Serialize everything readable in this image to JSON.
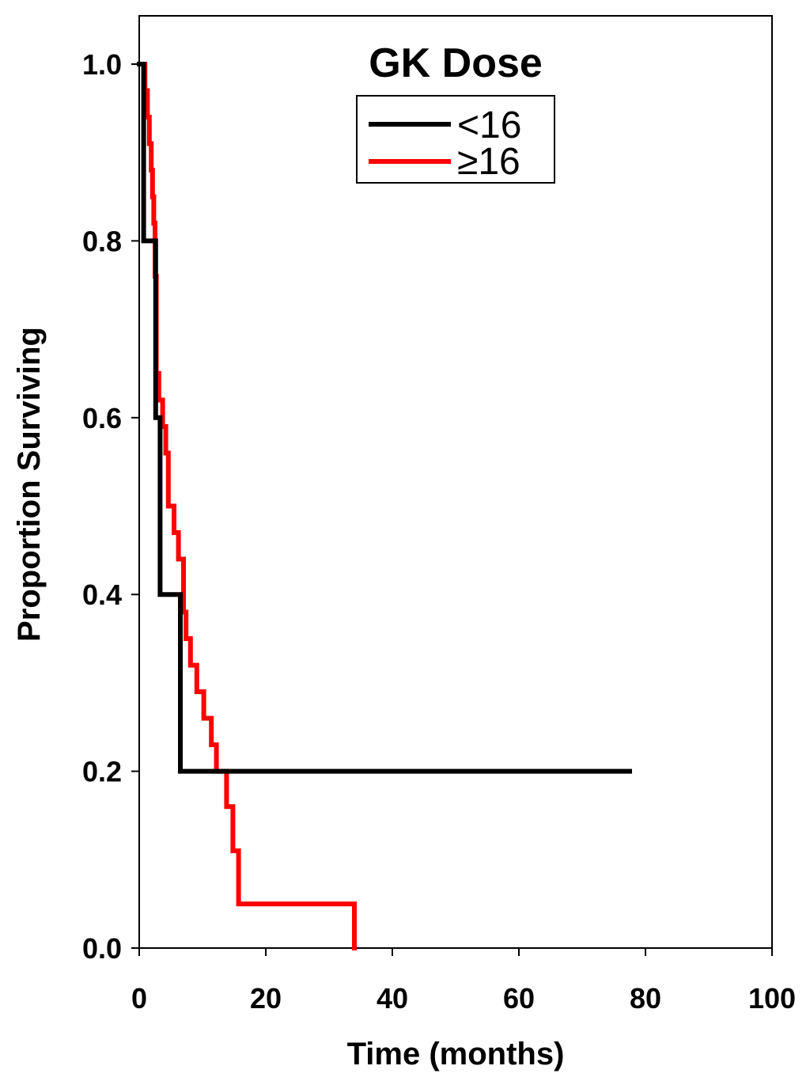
{
  "chart_data": {
    "type": "line",
    "title": "GK Dose",
    "xlabel": "Time (months)",
    "ylabel": "Proportion Surviving",
    "xlim": [
      0,
      100
    ],
    "ylim": [
      0,
      1.05
    ],
    "x_ticks": [
      "0",
      "20",
      "40",
      "60",
      "80",
      "100"
    ],
    "y_ticks": [
      "0.0",
      "0.2",
      "0.4",
      "0.6",
      "0.8",
      "1.0"
    ],
    "grid": false,
    "legend_position": "top-center",
    "step": true,
    "series": [
      {
        "name": "<16",
        "color": "#000000",
        "x": [
          0,
          0.7,
          2.6,
          3.3,
          6.5,
          77.5
        ],
        "y": [
          1.0,
          0.8,
          0.6,
          0.4,
          0.2,
          0.2
        ]
      },
      {
        "name": "≥16",
        "color": "#ff0000",
        "x": [
          0,
          0.9,
          1.3,
          1.6,
          1.9,
          2.1,
          2.3,
          2.5,
          2.7,
          3.1,
          3.7,
          4.2,
          4.6,
          5.5,
          6.2,
          7.0,
          7.4,
          8.1,
          9.1,
          10.2,
          11.4,
          12.2,
          13.8,
          14.8,
          15.7,
          34.0
        ],
        "y": [
          1.0,
          0.97,
          0.94,
          0.91,
          0.88,
          0.85,
          0.82,
          0.76,
          0.65,
          0.62,
          0.59,
          0.56,
          0.5,
          0.47,
          0.44,
          0.38,
          0.35,
          0.32,
          0.29,
          0.26,
          0.23,
          0.2,
          0.16,
          0.11,
          0.05,
          0.0
        ]
      }
    ]
  }
}
